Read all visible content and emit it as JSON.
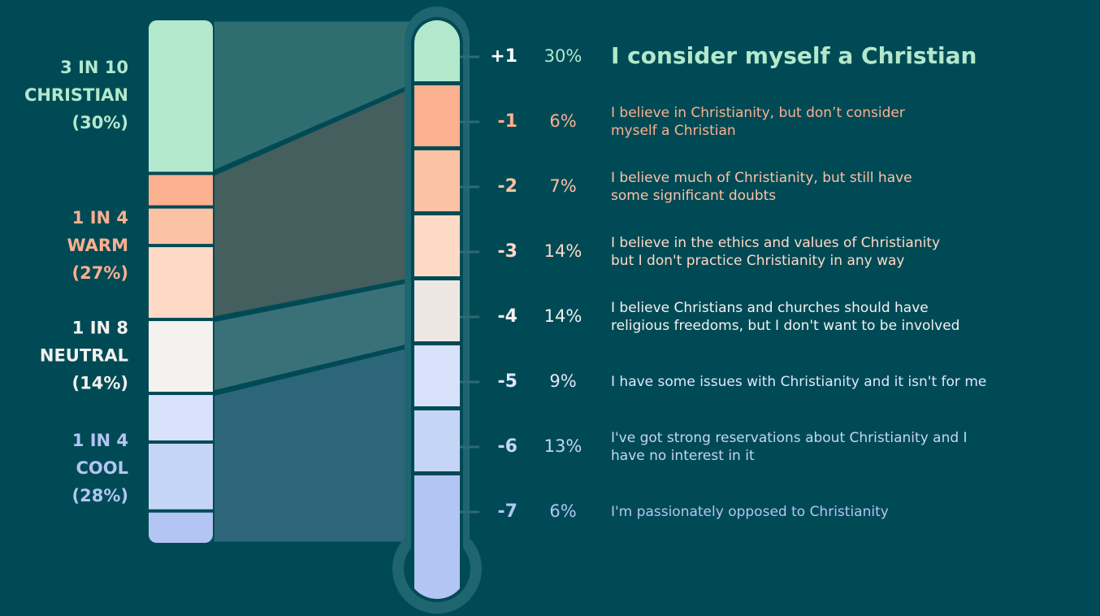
{
  "chart_data": {
    "type": "thermometer",
    "categories": [
      "+1",
      "-1",
      "-2",
      "-3",
      "-4",
      "-5",
      "-6",
      "-7"
    ],
    "values": [
      30,
      6,
      7,
      14,
      14,
      9,
      13,
      6
    ],
    "value_labels": [
      "30%",
      "6%",
      "7%",
      "14%",
      "14%",
      "9%",
      "13%",
      "6%"
    ],
    "descriptions": [
      [
        "I consider myself a Christian"
      ],
      [
        "I believe in Christianity, but don’t consider",
        "myself a Christian"
      ],
      [
        "I believe much of Christianity, but still have",
        "some significant doubts"
      ],
      [
        "I believe in the ethics and values of Christianity",
        "but I don't practice Christianity in any way"
      ],
      [
        "I believe Christians and churches should have",
        "religious freedoms, but I don't want to be involved"
      ],
      [
        "I have some issues with Christianity and it isn't for me"
      ],
      [
        "I've got strong reservations about Christianity and I",
        "have no interest in it"
      ],
      [
        "I'm passionately opposed to Christianity"
      ]
    ],
    "colors": [
      "#b3e8cc",
      "#fbb08f",
      "#fcc2a4",
      "#fdd9c6",
      "#ede7e3",
      "#d8e2fa",
      "#c5d5f6",
      "#b3c5f3"
    ],
    "left_colors": [
      "#b3e8cc",
      "#fbb08f",
      "#fcc2a4",
      "#fdd9c6",
      "#f3f2ef",
      "#d8e2fa",
      "#c5d5f6",
      "#b3c5f3"
    ],
    "label_colors": [
      "#b3e8cc",
      "#fbb08f",
      "#fcc2a4",
      "#fdd9c6",
      "#f3f2ef",
      "#dfe7fb",
      "#c5d5f6",
      "#b3c5f3"
    ],
    "groups": [
      {
        "lines": [
          "3 IN 10",
          "CHRISTIAN"
        ],
        "share_label": "(30%)",
        "members": [
          0
        ],
        "color": "#b3e8cc",
        "band_color": "#2f6e70"
      },
      {
        "lines": [
          "1 IN 4",
          "WARM"
        ],
        "share_label": "(27%)",
        "members": [
          1,
          2,
          3
        ],
        "color": "#fbb08f",
        "band_color": "#445f5d"
      },
      {
        "lines": [
          "1 IN 8",
          "NEUTRAL"
        ],
        "share_label": "(14%)",
        "members": [
          4
        ],
        "color": "#f3f2ef",
        "band_color": "#3a7178"
      },
      {
        "lines": [
          "1 IN 4",
          "COOL"
        ],
        "share_label": "(28%)",
        "members": [
          5,
          6,
          7
        ],
        "color": "#b3c5f3",
        "band_color": "#2d6679"
      }
    ]
  }
}
